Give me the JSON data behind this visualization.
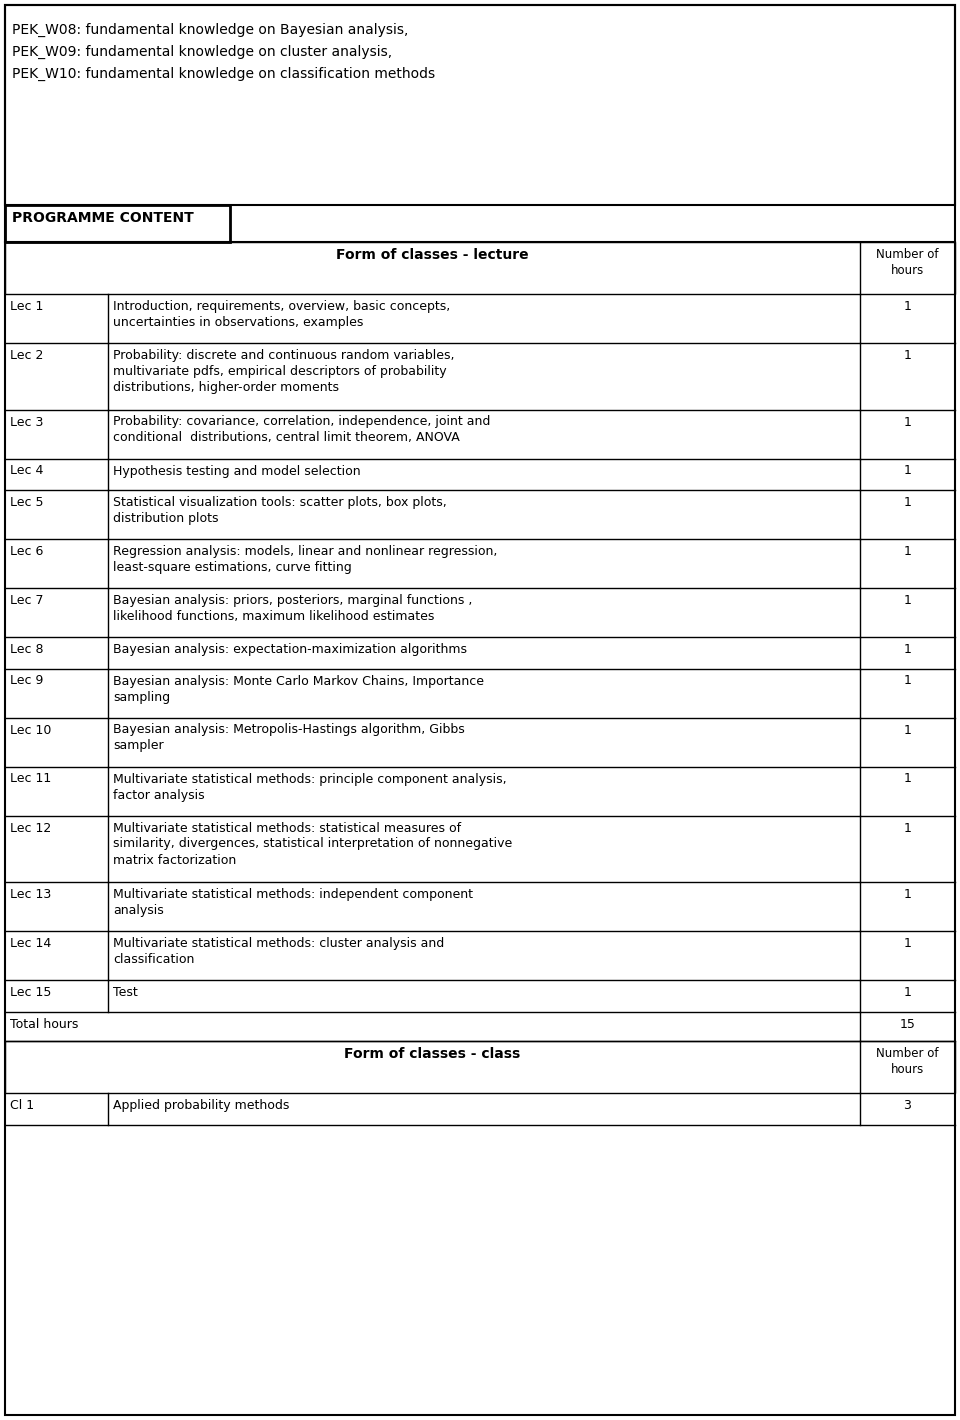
{
  "header_text": [
    "PEK_W08: fundamental knowledge on Bayesian analysis,",
    "PEK_W09: fundamental knowledge on cluster analysis,",
    "PEK_W10: fundamental knowledge on classification methods"
  ],
  "programme_content_label": "PROGRAMME CONTENT",
  "section_header": "Form of classes - lecture",
  "section_header2": "Form of classes - class",
  "hours_header": "Number of\nhours",
  "lectures": [
    {
      "id": "Lec 1",
      "desc": "Introduction, requirements, overview, basic concepts,\nuncertainties in observations, examples",
      "hours": "1",
      "lines": 2
    },
    {
      "id": "Lec 2",
      "desc": "Probability: discrete and continuous random variables,\nmultivariate pdfs, empirical descriptors of probability\ndistributions, higher-order moments",
      "hours": "1",
      "lines": 3
    },
    {
      "id": "Lec 3",
      "desc": "Probability: covariance, correlation, independence, joint and\nconditional  distributions, central limit theorem, ANOVA",
      "hours": "1",
      "lines": 2
    },
    {
      "id": "Lec 4",
      "desc": "Hypothesis testing and model selection",
      "hours": "1",
      "lines": 1
    },
    {
      "id": "Lec 5",
      "desc": "Statistical visualization tools: scatter plots, box plots,\ndistribution plots",
      "hours": "1",
      "lines": 2
    },
    {
      "id": "Lec 6",
      "desc": "Regression analysis: models, linear and nonlinear regression,\nleast-square estimations, curve fitting",
      "hours": "1",
      "lines": 2
    },
    {
      "id": "Lec 7",
      "desc": "Bayesian analysis: priors, posteriors, marginal functions ,\nlikelihood functions, maximum likelihood estimates",
      "hours": "1",
      "lines": 2
    },
    {
      "id": "Lec 8",
      "desc": "Bayesian analysis: expectation-maximization algorithms",
      "hours": "1",
      "lines": 1
    },
    {
      "id": "Lec 9",
      "desc": "Bayesian analysis: Monte Carlo Markov Chains, Importance\nsampling",
      "hours": "1",
      "lines": 2
    },
    {
      "id": "Lec 10",
      "desc": "Bayesian analysis: Metropolis-Hastings algorithm, Gibbs\nsampler",
      "hours": "1",
      "lines": 2
    },
    {
      "id": "Lec 11",
      "desc": "Multivariate statistical methods: principle component analysis,\nfactor analysis",
      "hours": "1",
      "lines": 2
    },
    {
      "id": "Lec 12",
      "desc": "Multivariate statistical methods: statistical measures of\nsimilarity, divergences, statistical interpretation of nonnegative\nmatrix factorization",
      "hours": "1",
      "lines": 3
    },
    {
      "id": "Lec 13",
      "desc": "Multivariate statistical methods: independent component\nanalysis",
      "hours": "1",
      "lines": 2
    },
    {
      "id": "Lec 14",
      "desc": "Multivariate statistical methods: cluster analysis and\nclassification",
      "hours": "1",
      "lines": 2
    },
    {
      "id": "Lec 15",
      "desc": "Test",
      "hours": "1",
      "lines": 1
    },
    {
      "id": "",
      "desc": "Total hours",
      "hours": "15",
      "lines": 1
    }
  ],
  "classes": [
    {
      "id": "Cl 1",
      "desc": "Applied probability methods",
      "hours": "3",
      "lines": 1
    }
  ],
  "bg_color": "#ffffff",
  "text_color": "#000000",
  "font_size": 9.0,
  "header_font_size": 10.0,
  "bold_font_size": 10.0
}
